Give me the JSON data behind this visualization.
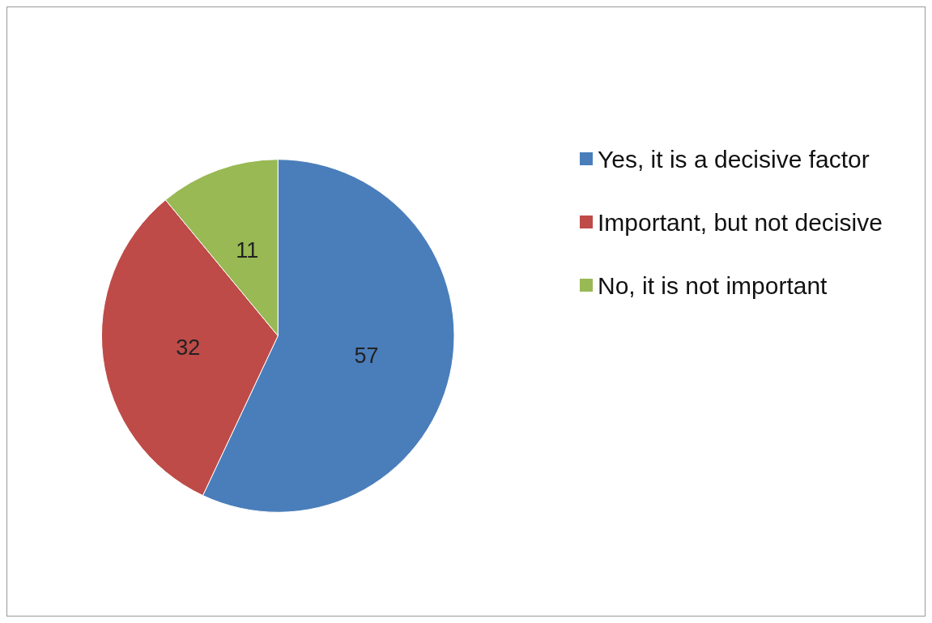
{
  "chart_data": {
    "type": "pie",
    "categories": [
      "Yes, it is a decisive factor",
      "Important, but not decisive",
      "No, it is not important"
    ],
    "values": [
      57,
      32,
      11
    ],
    "colors": [
      "#4a7ebb",
      "#be4b48",
      "#98b954"
    ],
    "data_labels": true,
    "legend": "right"
  }
}
